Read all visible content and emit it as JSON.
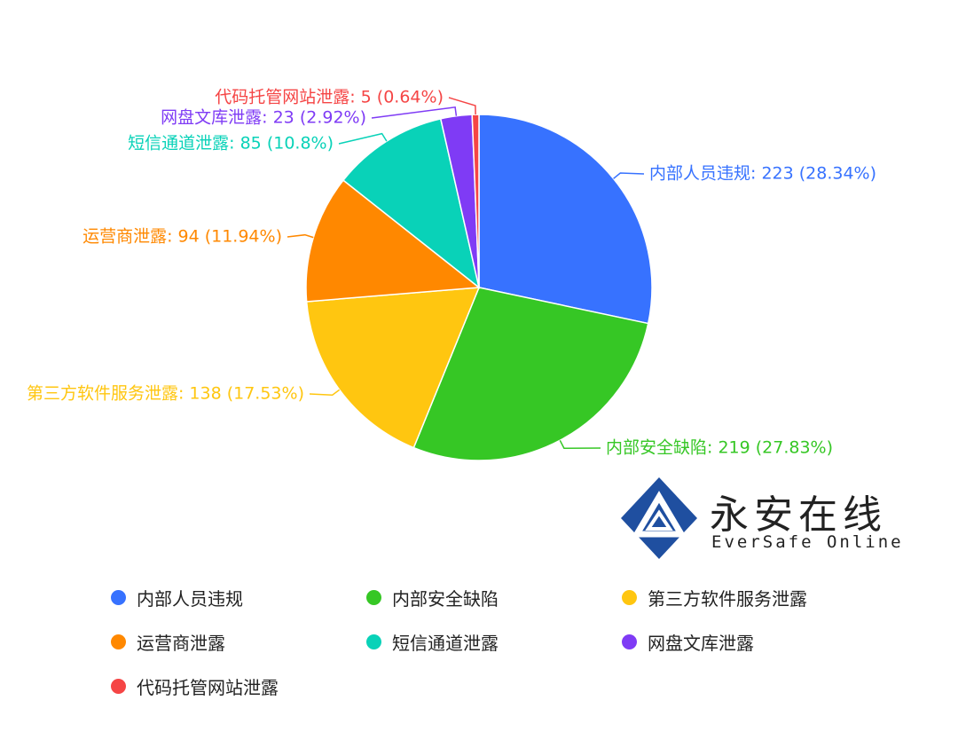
{
  "chart_data": {
    "type": "pie",
    "slices": [
      {
        "name": "内部人员违规",
        "value": 223,
        "label": "内部人员违规: 223 (28.34%)",
        "color": "#3772ff"
      },
      {
        "name": "内部安全缺陷",
        "value": 219,
        "label": "内部安全缺陷: 219 (27.83%)",
        "color": "#36c725"
      },
      {
        "name": "第三方软件服务泄露",
        "value": 138,
        "label": "第三方软件服务泄露: 138 (17.53%)",
        "color": "#ffc610"
      },
      {
        "name": "运营商泄露",
        "value": 94,
        "label": "运营商泄露: 94 (11.94%)",
        "color": "#ff8800"
      },
      {
        "name": "短信通道泄露",
        "value": 85,
        "label": "短信通道泄露: 85 (10.8%)",
        "color": "#09d2b8"
      },
      {
        "name": "网盘文库泄露",
        "value": 23,
        "label": "网盘文库泄露: 23 (2.92%)",
        "color": "#7f3bf5"
      },
      {
        "name": "代码托管网站泄露",
        "value": 5,
        "label": "代码托管网站泄露: 5 (0.64%)",
        "color": "#f54545"
      }
    ],
    "legend_position": "bottom"
  },
  "logo": {
    "name_cn": "永安在线",
    "name_en": "EverSafe Online",
    "color": "#1f4fa0"
  }
}
